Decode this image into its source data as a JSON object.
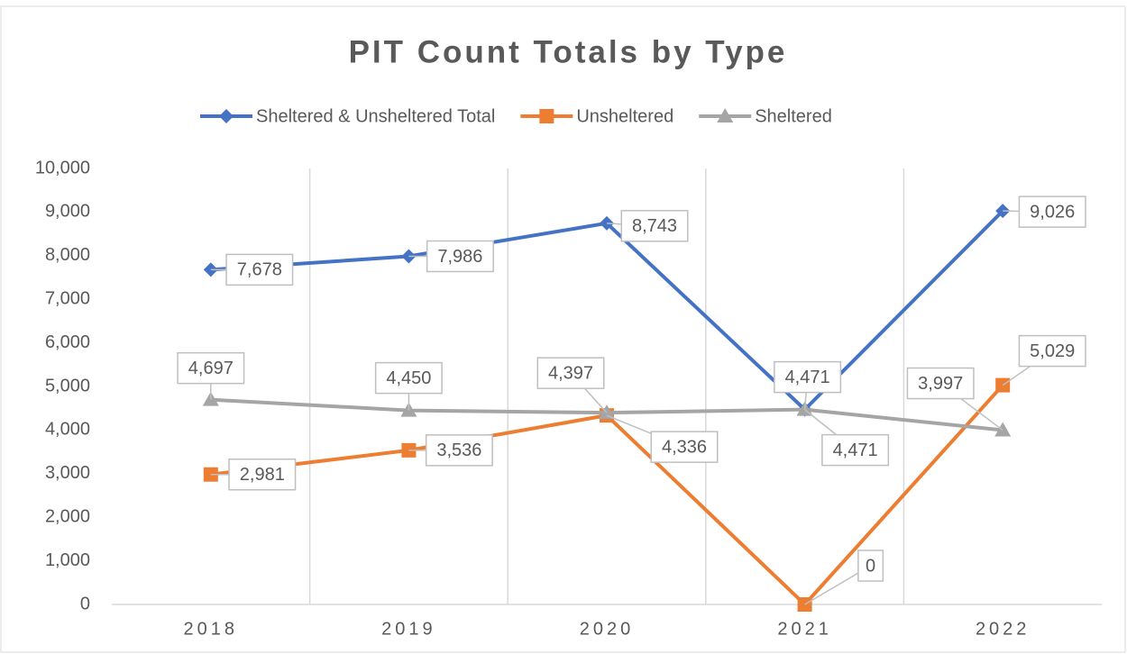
{
  "chart_data": {
    "type": "line",
    "title": "PIT Count Totals by Type",
    "categories": [
      "2018",
      "2019",
      "2020",
      "2021",
      "2022"
    ],
    "series": [
      {
        "name": "Sheltered & Unsheltered Total",
        "color": "#4472c4",
        "marker": "diamond",
        "values": [
          7678,
          7986,
          8743,
          4471,
          9026
        ],
        "value_labels": [
          "7,678",
          "7,986",
          "8,743",
          "4,471",
          "9,026"
        ]
      },
      {
        "name": "Unsheltered",
        "color": "#ed7d31",
        "marker": "square",
        "values": [
          2981,
          3536,
          4336,
          0,
          5029
        ],
        "value_labels": [
          "2,981",
          "3,536",
          "4,336",
          "0",
          "5,029"
        ]
      },
      {
        "name": "Sheltered",
        "color": "#a5a5a5",
        "marker": "triangle",
        "values": [
          4697,
          4450,
          4397,
          4471,
          3997
        ],
        "value_labels": [
          "4,697",
          "4,450",
          "4,397",
          "4,471",
          "3,997"
        ]
      }
    ],
    "ylim": [
      0,
      10000
    ],
    "yticks": [
      0,
      {
        "value": 1000,
        "label": "1,000"
      },
      {
        "value": 2000,
        "label": "2,000"
      },
      {
        "value": 3000,
        "label": "3,000"
      },
      {
        "value": 4000,
        "label": "4,000"
      },
      {
        "value": 5000,
        "label": "5,000"
      },
      {
        "value": 6000,
        "label": "6,000"
      },
      {
        "value": 7000,
        "label": "7,000"
      },
      {
        "value": 8000,
        "label": "8,000"
      },
      {
        "value": 9000,
        "label": "9,000"
      },
      {
        "value": 10000,
        "label": "10,000"
      }
    ],
    "grid": "x",
    "legend": "top"
  }
}
